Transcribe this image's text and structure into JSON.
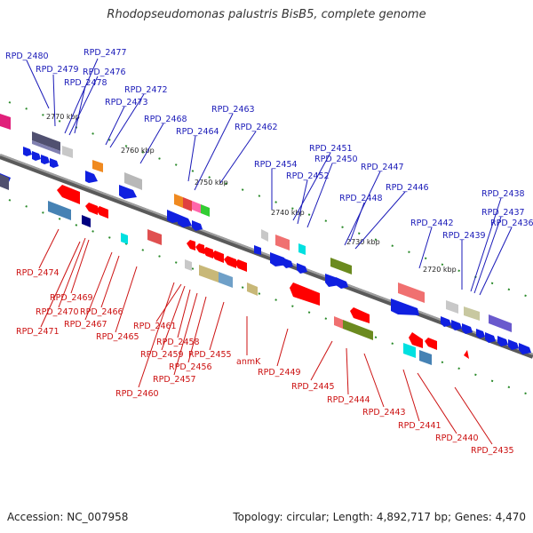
{
  "title": "Rhodopseudomonas palustris BisB5, complete genome",
  "accession": "Accession: NC_007958",
  "topology": "Topology: circular; Length: 4,892,717 bp; Genes: 4,470",
  "colors": {
    "top_label": "#1a1ab8",
    "bottom_label": "#cc1111",
    "backbone": "#808080",
    "tick": "#2a8a2a"
  },
  "kbp_markers": [
    "2770 kbp",
    "2760 kbp",
    "2750 kbp",
    "2740 kbp",
    "2730 kbp",
    "2720 kbp"
  ],
  "top_labels": [
    "RPD_2480",
    "RPD_2477",
    "RPD_2479",
    "RPD_2476",
    "RPD_2478",
    "RPD_2472",
    "RPD_2473",
    "RPD_2468",
    "RPD_2463",
    "RPD_2464",
    "RPD_2462",
    "RPD_2451",
    "RPD_2454",
    "RPD_2450",
    "RPD_2452",
    "RPD_2447",
    "RPD_2448",
    "RPD_2446",
    "RPD_2442",
    "RPD_2439",
    "RPD_2438",
    "RPD_2437",
    "RPD_2436"
  ],
  "bottom_labels": [
    "RPD_2474",
    "RPD_2469",
    "RPD_2470",
    "RPD_2466",
    "RPD_2467",
    "RPD_2471",
    "RPD_2465",
    "RPD_2461",
    "RPD_2458",
    "RPD_2459",
    "RPD_2455",
    "RPD_2456",
    "anmK",
    "RPD_2457",
    "RPD_2449",
    "RPD_2460",
    "RPD_2445",
    "RPD_2444",
    "RPD_2443",
    "RPD_2441",
    "RPD_2440",
    "RPD_2435"
  ]
}
